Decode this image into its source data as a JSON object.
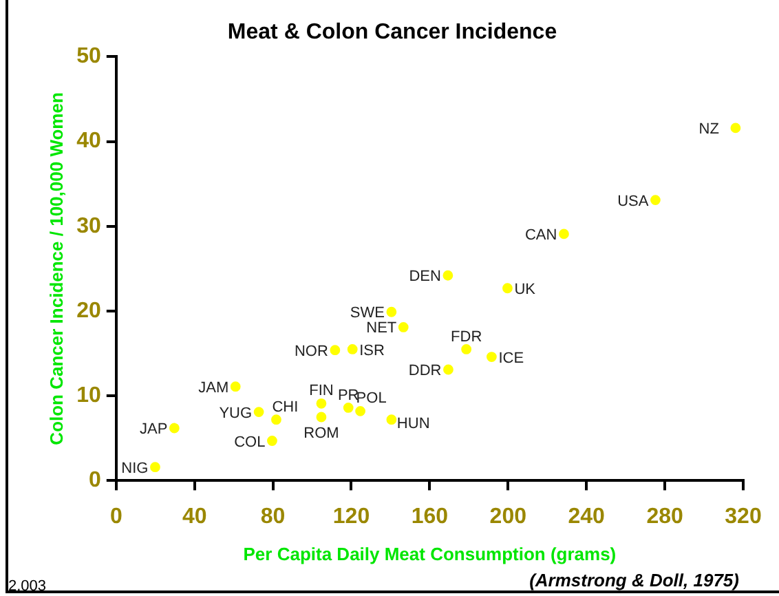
{
  "chart_data": {
    "type": "scatter",
    "title": "Meat & Colon Cancer Incidence",
    "xlabel": "Per Capita Daily Meat Consumption (grams)",
    "ylabel": "Colon Cancer Incidence / 100,000 Women",
    "x": [
      19.9,
      29.7,
      60.9,
      72.8,
      81.7,
      79.6,
      104.7,
      104.7,
      118.5,
      124.6,
      140.5,
      111.7,
      120.6,
      140.5,
      146.6,
      169.3,
      199.7,
      228.5,
      275.2,
      316.1,
      178.7,
      191.6,
      169.5
    ],
    "series": [
      {
        "color": "#ffff00",
        "values": [
          1.6,
          6.2,
          11.1,
          8.1,
          7.2,
          4.7,
          9.1,
          7.5,
          8.6,
          8.2,
          7.2,
          15.4,
          15.5,
          19.9,
          18.1,
          24.2,
          22.7,
          29.1,
          33.1,
          41.6,
          15.5,
          14.6,
          13.1
        ]
      }
    ],
    "xlim": [
      0,
      320
    ],
    "xticks": [
      0,
      40,
      80,
      120,
      160,
      200,
      240,
      280,
      320
    ],
    "ylim": [
      0,
      50
    ],
    "yticks": [
      0,
      10,
      20,
      30,
      40,
      50
    ],
    "grid": false,
    "legend": false,
    "marker": "circle",
    "annotations": [
      {
        "text": "NIG",
        "x": 19.9,
        "y": 1.6
      },
      {
        "text": "JAP",
        "x": 29.7,
        "y": 6.2
      },
      {
        "text": "JAM",
        "x": 60.9,
        "y": 11.1
      },
      {
        "text": "YUG",
        "x": 72.8,
        "y": 8.1
      },
      {
        "text": "CHI",
        "x": 81.7,
        "y": 7.2
      },
      {
        "text": "COL",
        "x": 79.6,
        "y": 4.7
      },
      {
        "text": "FIN",
        "x": 104.7,
        "y": 9.1
      },
      {
        "text": "ROM",
        "x": 104.7,
        "y": 7.5
      },
      {
        "text": "PR",
        "x": 118.5,
        "y": 8.6
      },
      {
        "text": "POL",
        "x": 124.6,
        "y": 8.2
      },
      {
        "text": "HUN",
        "x": 140.5,
        "y": 7.2
      },
      {
        "text": "NOR",
        "x": 111.7,
        "y": 15.4
      },
      {
        "text": "ISR",
        "x": 120.6,
        "y": 15.5
      },
      {
        "text": "SWE",
        "x": 140.5,
        "y": 19.9
      },
      {
        "text": "NET",
        "x": 146.6,
        "y": 18.1
      },
      {
        "text": "DEN",
        "x": 169.3,
        "y": 24.2
      },
      {
        "text": "UK",
        "x": 199.7,
        "y": 22.7
      },
      {
        "text": "CAN",
        "x": 228.5,
        "y": 29.1
      },
      {
        "text": "USA",
        "x": 275.2,
        "y": 33.1
      },
      {
        "text": "NZ",
        "x": 316.1,
        "y": 41.6
      },
      {
        "text": "FDR",
        "x": 178.7,
        "y": 15.5
      },
      {
        "text": "ICE",
        "x": 191.6,
        "y": 14.6
      },
      {
        "text": "DDR",
        "x": 169.5,
        "y": 13.1
      },
      "(Armstrong & Doll, 1975)",
      "2.003"
    ]
  }
}
